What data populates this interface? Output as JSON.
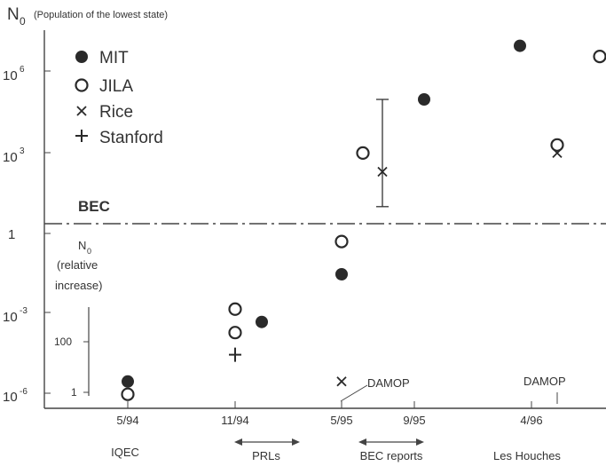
{
  "chart_data": {
    "type": "scatter",
    "title": "N",
    "title_sub": "0",
    "title_note": "(Population of the lowest state)",
    "x": [
      "5/94",
      "11/94",
      "5/95",
      "9/95",
      "4/96"
    ],
    "y_scale": "log10",
    "ylim": [
      1e-07,
      10000000.0
    ],
    "y_ticks": [
      {
        "base": "10",
        "exp": "6",
        "value": 1000000.0
      },
      {
        "base": "10",
        "exp": "3",
        "value": 1000.0
      },
      {
        "base": "1",
        "exp": "",
        "value": 1
      },
      {
        "base": "10",
        "exp": "-3",
        "value": 0.001
      },
      {
        "base": "10",
        "exp": "-6",
        "value": 1e-06
      }
    ],
    "threshold": {
      "label": "BEC",
      "value": 10
    },
    "inset_axis": {
      "title": "N",
      "title_sub": "0",
      "note_1": "(relative",
      "note_2": "increase)",
      "ticks": [
        "100",
        "1"
      ]
    },
    "events": [
      "IQEC",
      "PRLs",
      "BEC reports",
      "Les Houches"
    ],
    "annotations": [
      "DAMOP",
      "DAMOP"
    ],
    "legend": [
      "MIT",
      "JILA",
      "Rice",
      "Stanford"
    ],
    "series": [
      {
        "name": "MIT",
        "marker": "filled-circle",
        "points": [
          {
            "x": "5/94",
            "y": 3e-06
          },
          {
            "x": "11/94",
            "y": 0.0005
          },
          {
            "x": "5/95",
            "y": 0.03
          },
          {
            "x": "9/95",
            "y": 100000.0
          },
          {
            "x": "4/96",
            "y": 10000000.0
          }
        ]
      },
      {
        "name": "JILA",
        "marker": "open-circle",
        "points": [
          {
            "x": "5/94",
            "y": 1e-06
          },
          {
            "x": "11/94",
            "y": 0.0002
          },
          {
            "x": "11/94",
            "y": 0.0015
          },
          {
            "x": "5/95",
            "y": 0.5
          },
          {
            "x": "5/95",
            "y": 1000.0
          },
          {
            "x": "4/96",
            "y": 2000.0
          },
          {
            "x": "4/96",
            "y": 4000000.0
          }
        ]
      },
      {
        "name": "Rice",
        "marker": "x",
        "points": [
          {
            "x": "5/95",
            "y": 3e-06
          },
          {
            "x": "5/95",
            "y": 200,
            "err_low": 10,
            "err_high": 100000.0
          },
          {
            "x": "4/96",
            "y": 1000
          }
        ]
      },
      {
        "name": "Stanford",
        "marker": "plus",
        "points": [
          {
            "x": "11/94",
            "y": 3e-05
          }
        ]
      }
    ]
  }
}
